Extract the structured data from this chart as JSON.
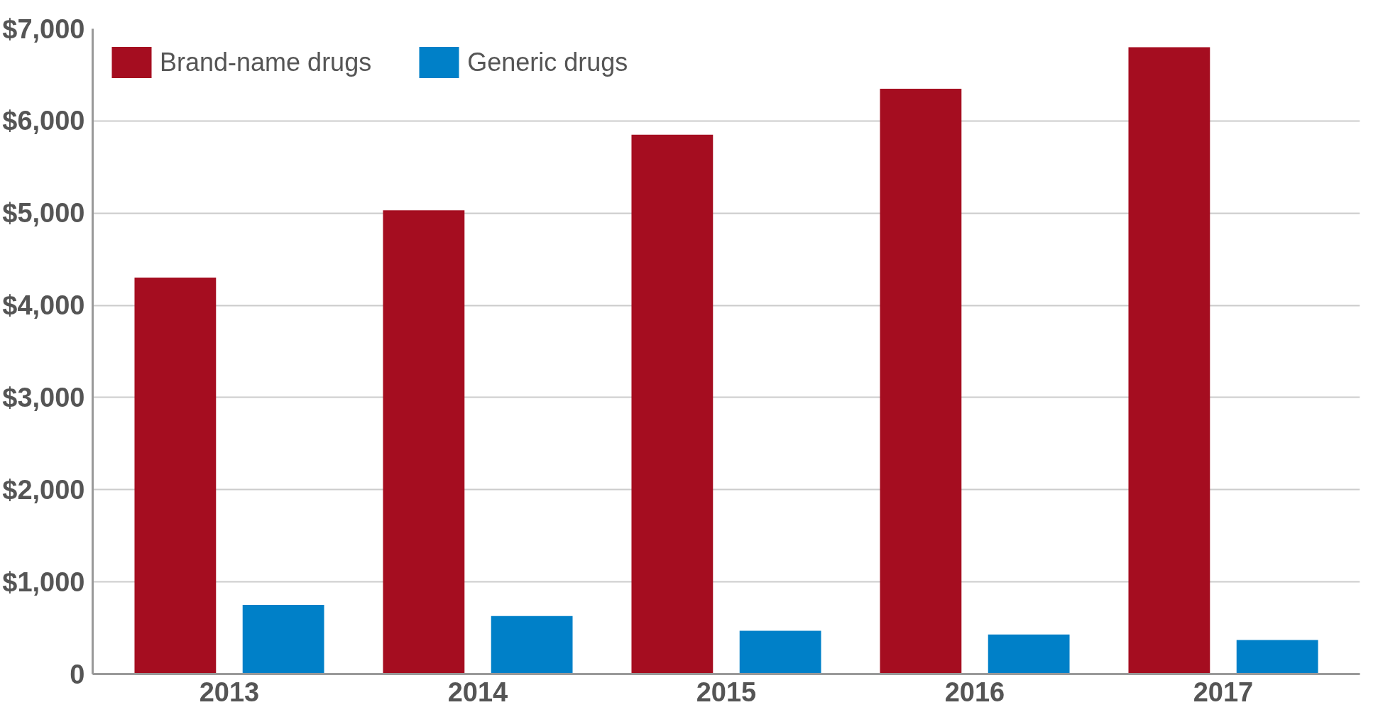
{
  "chart_data": {
    "type": "bar",
    "categories": [
      "2013",
      "2014",
      "2015",
      "2016",
      "2017"
    ],
    "series": [
      {
        "name": "Brand-name drugs",
        "color": "#a50d20",
        "values": [
          4300,
          5030,
          5850,
          6350,
          6800
        ]
      },
      {
        "name": "Generic drugs",
        "color": "#0080c8",
        "values": [
          750,
          630,
          470,
          430,
          370
        ]
      }
    ],
    "ylim": [
      0,
      7000
    ],
    "yticks": [
      0,
      {
        "value": 1000,
        "label": "$1,000"
      },
      {
        "value": 2000,
        "label": "$2,000"
      },
      {
        "value": 3000,
        "label": "$3,000"
      },
      {
        "value": 4000,
        "label": "$4,000"
      },
      {
        "value": 5000,
        "label": "$5,000"
      },
      {
        "value": 6000,
        "label": "$6,000"
      },
      {
        "value": 7000,
        "label": "$7,000"
      }
    ],
    "grid": "y",
    "legend": "top left"
  }
}
